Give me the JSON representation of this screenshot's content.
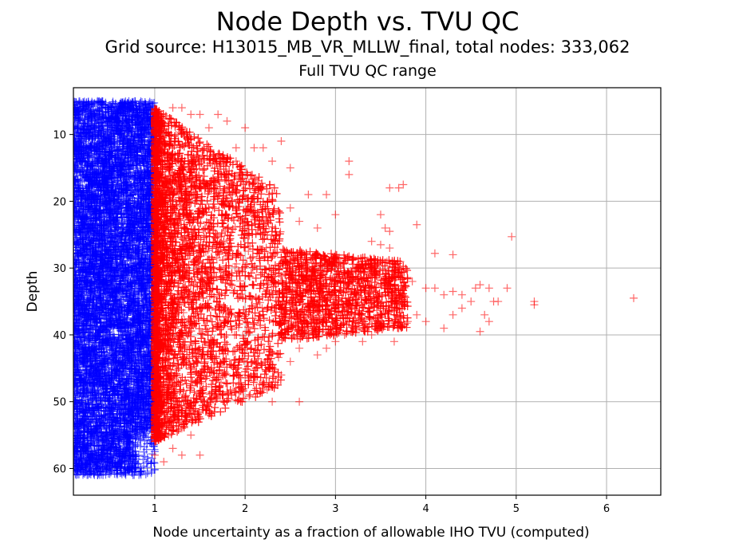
{
  "chart_data": {
    "type": "scatter",
    "title": "Node Depth vs. TVU QC",
    "subtitle": "Grid source: H13015_MB_VR_MLLW_final, total nodes: 333,062",
    "subtitle2": "Full TVU QC range",
    "xlabel": "Node uncertainty as a fraction of allowable IHO TVU (computed)",
    "ylabel": "Depth",
    "xlim": [
      0.1,
      6.6
    ],
    "ylim": [
      64,
      3
    ],
    "y_inverted": true,
    "grid": true,
    "xticks": [
      "1",
      "2",
      "3",
      "4",
      "5",
      "6"
    ],
    "yticks": [
      "10",
      "20",
      "30",
      "40",
      "50",
      "60"
    ],
    "marker": "+",
    "series": [
      {
        "color": "#0000ff",
        "x_range": [
          0.1,
          1.0
        ],
        "depth_range": [
          5,
          61
        ],
        "note_points": "dense band of nodes with TVU fraction <= 1"
      },
      {
        "color": "#ff0000",
        "points": [
          [
            1.2,
            6
          ],
          [
            1.3,
            6
          ],
          [
            1.4,
            7
          ],
          [
            1.5,
            7
          ],
          [
            1.7,
            7
          ],
          [
            1.8,
            8
          ],
          [
            1.6,
            9
          ],
          [
            2.0,
            9
          ],
          [
            1.9,
            12
          ],
          [
            2.1,
            12
          ],
          [
            2.2,
            12
          ],
          [
            2.4,
            11
          ],
          [
            1.7,
            13
          ],
          [
            1.9,
            14
          ],
          [
            2.3,
            14
          ],
          [
            3.15,
            14
          ],
          [
            3.15,
            16
          ],
          [
            2.5,
            15
          ],
          [
            2.7,
            19
          ],
          [
            2.9,
            19
          ],
          [
            3.6,
            18
          ],
          [
            3.7,
            18
          ],
          [
            3.75,
            17.5
          ],
          [
            2.3,
            20
          ],
          [
            2.5,
            21
          ],
          [
            2.6,
            23
          ],
          [
            2.8,
            24
          ],
          [
            3.0,
            22
          ],
          [
            3.5,
            22
          ],
          [
            3.55,
            24
          ],
          [
            3.6,
            24.5
          ],
          [
            3.9,
            23.5
          ],
          [
            4.95,
            25.3
          ],
          [
            3.4,
            26
          ],
          [
            3.5,
            26.5
          ],
          [
            2.8,
            28
          ],
          [
            3.0,
            28
          ],
          [
            3.6,
            27
          ],
          [
            4.1,
            27.8
          ],
          [
            3.3,
            29
          ],
          [
            3.4,
            30
          ],
          [
            3.7,
            30
          ],
          [
            3.85,
            32
          ],
          [
            4.0,
            33
          ],
          [
            4.1,
            33
          ],
          [
            4.2,
            34
          ],
          [
            4.3,
            33.5
          ],
          [
            4.4,
            34
          ],
          [
            4.5,
            35
          ],
          [
            4.55,
            33
          ],
          [
            4.6,
            32.5
          ],
          [
            4.7,
            33
          ],
          [
            4.75,
            35
          ],
          [
            4.8,
            35
          ],
          [
            4.65,
            37
          ],
          [
            4.7,
            38
          ],
          [
            4.4,
            36
          ],
          [
            4.3,
            37
          ],
          [
            4.2,
            39
          ],
          [
            4.0,
            38
          ],
          [
            3.9,
            37
          ],
          [
            3.8,
            38
          ],
          [
            3.7,
            39
          ],
          [
            3.6,
            36
          ],
          [
            3.5,
            38
          ],
          [
            3.4,
            40
          ],
          [
            3.3,
            41
          ],
          [
            3.2,
            39
          ],
          [
            3.1,
            40
          ],
          [
            3.0,
            41
          ],
          [
            2.9,
            42
          ],
          [
            2.8,
            43
          ],
          [
            2.6,
            42
          ],
          [
            2.5,
            44
          ],
          [
            2.3,
            44.5
          ],
          [
            2.4,
            46
          ],
          [
            2.3,
            47.5
          ],
          [
            2.3,
            50
          ],
          [
            2.6,
            50
          ],
          [
            2.2,
            48
          ],
          [
            2.0,
            46
          ],
          [
            1.9,
            48
          ],
          [
            1.8,
            50
          ],
          [
            1.6,
            52
          ],
          [
            1.4,
            55
          ],
          [
            1.3,
            54
          ],
          [
            1.2,
            57
          ],
          [
            1.3,
            58
          ],
          [
            1.5,
            58
          ],
          [
            1.1,
            59
          ],
          [
            1.0,
            58
          ],
          [
            5.2,
            35
          ],
          [
            5.2,
            35.5
          ],
          [
            6.3,
            34.5
          ],
          [
            4.9,
            33
          ],
          [
            4.6,
            39.5
          ],
          [
            3.65,
            41
          ],
          [
            4.3,
            28
          ]
        ]
      }
    ]
  }
}
